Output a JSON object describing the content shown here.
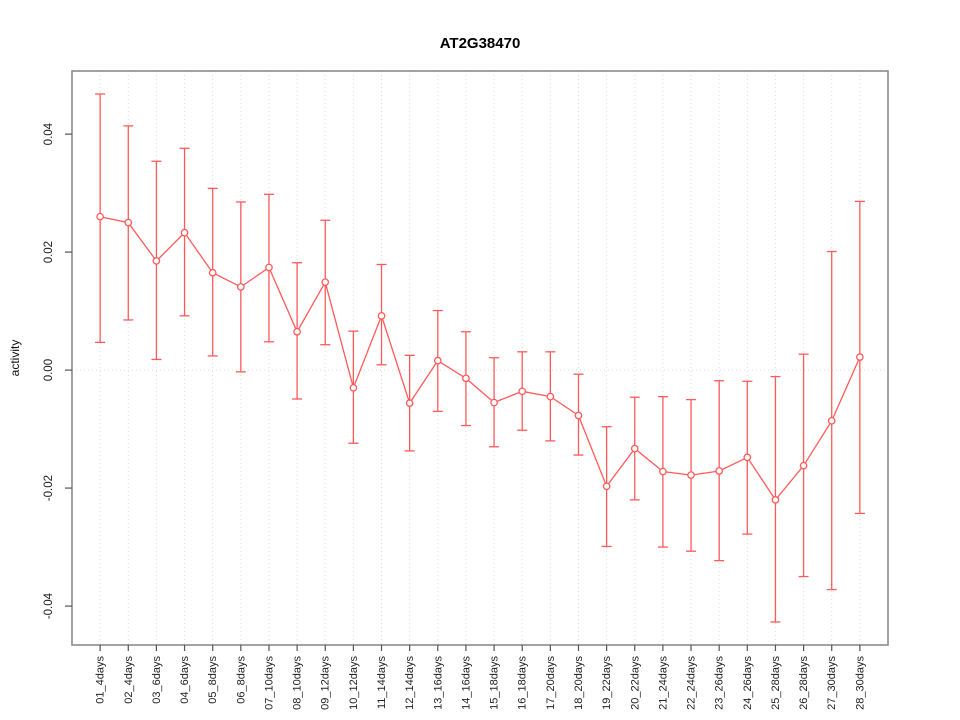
{
  "chart_data": {
    "type": "line",
    "title": "AT2G38470",
    "xlabel": "",
    "ylabel": "activity",
    "legend": "none",
    "grid": "vertical dotted gridlines at each category; dotted horizontal line at y=0",
    "marker": "open-circle",
    "error_bars": true,
    "series_color": "#ff5a5a",
    "box_color": "#8c8c8c",
    "grid_color": "#dcdcdc",
    "tick_color": "#555555",
    "ylim": [
      -0.0466,
      0.0507
    ],
    "yticks": [
      0.04,
      0.02,
      0.0,
      -0.02,
      -0.04
    ],
    "ytick_labels": [
      "0.04",
      "0.02",
      "0.00",
      "-0.02",
      "-0.04"
    ],
    "categories": [
      "01_4days",
      "02_4days",
      "03_6days",
      "04_6days",
      "05_8days",
      "06_8days",
      "07_10days",
      "08_10days",
      "09_12days",
      "10_12days",
      "11_14days",
      "12_14days",
      "13_16days",
      "14_16days",
      "15_18days",
      "16_18days",
      "17_20days",
      "18_20days",
      "19_22days",
      "20_22days",
      "21_24days",
      "22_24days",
      "23_26days",
      "24_26days",
      "25_28days",
      "26_28days",
      "27_30days",
      "28_30days"
    ],
    "series": [
      {
        "name": "activity",
        "values": [
          0.026,
          0.025,
          0.0185,
          0.0233,
          0.0165,
          0.0141,
          0.0174,
          0.0065,
          0.0149,
          -0.003,
          0.0092,
          -0.0056,
          0.0016,
          -0.0014,
          -0.0055,
          -0.0036,
          -0.0045,
          -0.0077,
          -0.0197,
          -0.0133,
          -0.0172,
          -0.0178,
          -0.0171,
          -0.0148,
          -0.022,
          -0.0162,
          -0.0086,
          0.0022
        ],
        "lower": [
          0.0047,
          0.0085,
          0.0018,
          0.0092,
          0.0024,
          -0.0003,
          0.0048,
          -0.0049,
          0.0043,
          -0.0124,
          0.0009,
          -0.0137,
          -0.007,
          -0.0094,
          -0.013,
          -0.0102,
          -0.012,
          -0.0144,
          -0.0299,
          -0.022,
          -0.03,
          -0.0307,
          -0.0323,
          -0.0278,
          -0.0427,
          -0.035,
          -0.0372,
          -0.0243
        ],
        "upper": [
          0.0468,
          0.0414,
          0.0354,
          0.0376,
          0.0308,
          0.0285,
          0.0298,
          0.0182,
          0.0254,
          0.0066,
          0.0179,
          0.0025,
          0.0101,
          0.0065,
          0.0021,
          0.0031,
          0.0031,
          -0.0007,
          -0.0096,
          -0.0046,
          -0.0045,
          -0.005,
          -0.0018,
          -0.0019,
          -0.0011,
          0.0027,
          0.0201,
          0.0286
        ]
      }
    ]
  }
}
